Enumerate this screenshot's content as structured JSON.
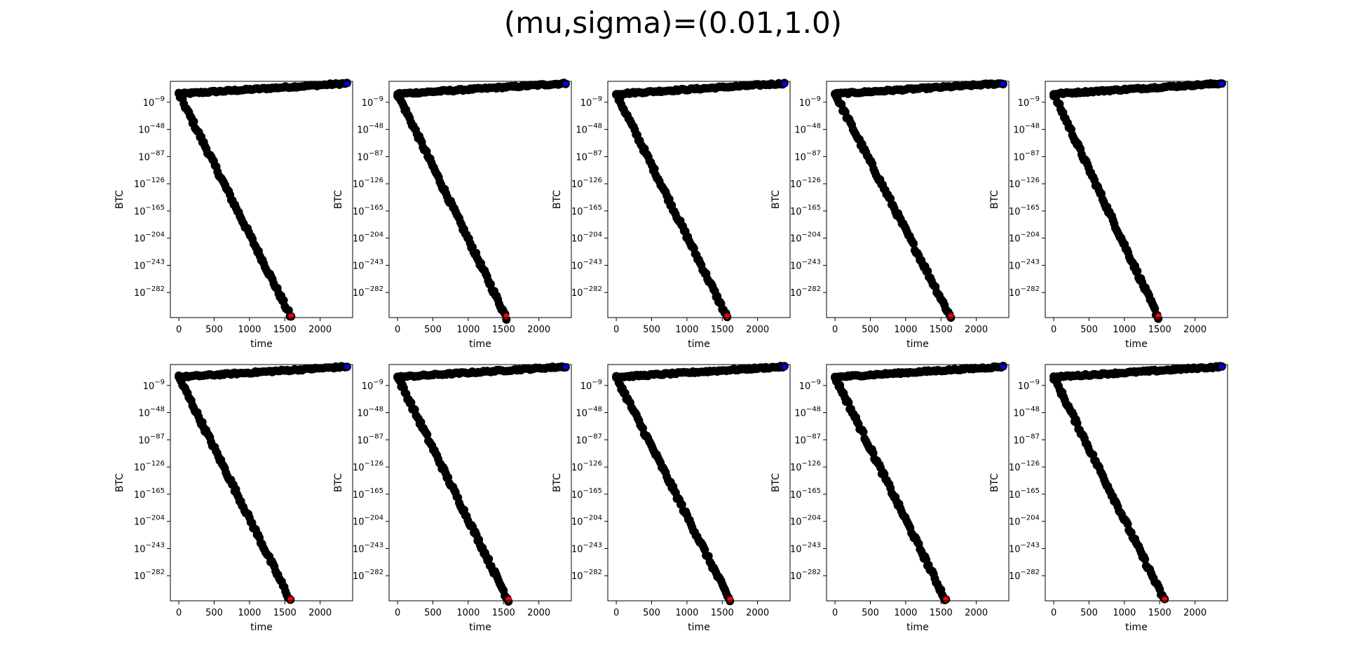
{
  "figure": {
    "title": "(mu,sigma)=(0.01,1.0)"
  },
  "chart_data": [
    {
      "type": "scatter",
      "xlabel": "time",
      "ylabel": "BTC",
      "xlim": [
        -120,
        2460
      ],
      "ylog": true,
      "ylim_exp": [
        21,
        -318
      ],
      "x_ticks": [
        0,
        500,
        1000,
        1500,
        2000
      ],
      "y_tick_exps": [
        -9,
        -48,
        -87,
        -126,
        -165,
        -204,
        -243,
        -282
      ],
      "x_end": 2380,
      "upper_start_exp": 3,
      "upper_end_exp": 18,
      "lower_end_x": 1590,
      "series": [
        {
          "name": "",
          "color": "#0000ff"
        },
        {
          "name": "",
          "color": "#ff0000"
        }
      ]
    },
    {
      "type": "scatter",
      "xlabel": "time",
      "ylabel": "BTC",
      "xlim": [
        -120,
        2460
      ],
      "ylog": true,
      "ylim_exp": [
        21,
        -318
      ],
      "x_ticks": [
        0,
        500,
        1000,
        1500,
        2000
      ],
      "y_tick_exps": [
        -9,
        -48,
        -87,
        -126,
        -165,
        -204,
        -243,
        -282
      ],
      "x_end": 2380,
      "upper_start_exp": 3,
      "upper_end_exp": 18,
      "lower_end_x": 1540,
      "series": [
        {
          "name": "",
          "color": "#0000ff"
        },
        {
          "name": "",
          "color": "#ff0000"
        }
      ]
    },
    {
      "type": "scatter",
      "xlabel": "time",
      "ylabel": "BTC",
      "xlim": [
        -120,
        2460
      ],
      "ylog": true,
      "ylim_exp": [
        21,
        -318
      ],
      "x_ticks": [
        0,
        500,
        1000,
        1500,
        2000
      ],
      "y_tick_exps": [
        -9,
        -48,
        -87,
        -126,
        -165,
        -204,
        -243,
        -282
      ],
      "x_end": 2380,
      "upper_start_exp": 3,
      "upper_end_exp": 18,
      "lower_end_x": 1570,
      "series": [
        {
          "name": "",
          "color": "#0000ff"
        },
        {
          "name": "",
          "color": "#ff0000"
        }
      ]
    },
    {
      "type": "scatter",
      "xlabel": "time",
      "ylabel": "BTC",
      "xlim": [
        -120,
        2460
      ],
      "ylog": true,
      "ylim_exp": [
        21,
        -318
      ],
      "x_ticks": [
        0,
        500,
        1000,
        1500,
        2000
      ],
      "y_tick_exps": [
        -9,
        -48,
        -87,
        -126,
        -165,
        -204,
        -243,
        -282
      ],
      "x_end": 2380,
      "upper_start_exp": 3,
      "upper_end_exp": 18,
      "lower_end_x": 1640,
      "series": [
        {
          "name": "",
          "color": "#0000ff"
        },
        {
          "name": "",
          "color": "#ff0000"
        }
      ]
    },
    {
      "type": "scatter",
      "xlabel": "time",
      "ylabel": "BTC",
      "xlim": [
        -120,
        2460
      ],
      "ylog": true,
      "ylim_exp": [
        21,
        -318
      ],
      "x_ticks": [
        0,
        500,
        1000,
        1500,
        2000
      ],
      "y_tick_exps": [
        -9,
        -48,
        -87,
        -126,
        -165,
        -204,
        -243,
        -282
      ],
      "x_end": 2380,
      "upper_start_exp": 3,
      "upper_end_exp": 18,
      "lower_end_x": 1480,
      "series": [
        {
          "name": "",
          "color": "#0000ff"
        },
        {
          "name": "",
          "color": "#ff0000"
        }
      ]
    },
    {
      "type": "scatter",
      "xlabel": "time",
      "ylabel": "BTC",
      "xlim": [
        -120,
        2460
      ],
      "ylog": true,
      "ylim_exp": [
        21,
        -318
      ],
      "x_ticks": [
        0,
        500,
        1000,
        1500,
        2000
      ],
      "y_tick_exps": [
        -9,
        -48,
        -87,
        -126,
        -165,
        -204,
        -243,
        -282
      ],
      "x_end": 2380,
      "upper_start_exp": 3,
      "upper_end_exp": 18,
      "lower_end_x": 1580,
      "series": [
        {
          "name": "",
          "color": "#0000ff"
        },
        {
          "name": "",
          "color": "#ff0000"
        }
      ]
    },
    {
      "type": "scatter",
      "xlabel": "time",
      "ylabel": "BTC",
      "xlim": [
        -120,
        2460
      ],
      "ylog": true,
      "ylim_exp": [
        21,
        -318
      ],
      "x_ticks": [
        0,
        500,
        1000,
        1500,
        2000
      ],
      "y_tick_exps": [
        -9,
        -48,
        -87,
        -126,
        -165,
        -204,
        -243,
        -282
      ],
      "x_end": 2380,
      "upper_start_exp": 3,
      "upper_end_exp": 18,
      "lower_end_x": 1570,
      "series": [
        {
          "name": "",
          "color": "#0000ff"
        },
        {
          "name": "",
          "color": "#ff0000"
        }
      ]
    },
    {
      "type": "scatter",
      "xlabel": "time",
      "ylabel": "BTC",
      "xlim": [
        -120,
        2460
      ],
      "ylog": true,
      "ylim_exp": [
        21,
        -318
      ],
      "x_ticks": [
        0,
        500,
        1000,
        1500,
        2000
      ],
      "y_tick_exps": [
        -9,
        -48,
        -87,
        -126,
        -165,
        -204,
        -243,
        -282
      ],
      "x_end": 2380,
      "upper_start_exp": 3,
      "upper_end_exp": 18,
      "lower_end_x": 1610,
      "series": [
        {
          "name": "",
          "color": "#0000ff"
        },
        {
          "name": "",
          "color": "#ff0000"
        }
      ]
    },
    {
      "type": "scatter",
      "xlabel": "time",
      "ylabel": "BTC",
      "xlim": [
        -120,
        2460
      ],
      "ylog": true,
      "ylim_exp": [
        21,
        -318
      ],
      "x_ticks": [
        0,
        500,
        1000,
        1500,
        2000
      ],
      "y_tick_exps": [
        -9,
        -48,
        -87,
        -126,
        -165,
        -204,
        -243,
        -282
      ],
      "x_end": 2380,
      "upper_start_exp": 3,
      "upper_end_exp": 18,
      "lower_end_x": 1570,
      "series": [
        {
          "name": "",
          "color": "#0000ff"
        },
        {
          "name": "",
          "color": "#ff0000"
        }
      ]
    },
    {
      "type": "scatter",
      "xlabel": "time",
      "ylabel": "BTC",
      "xlim": [
        -120,
        2460
      ],
      "ylog": true,
      "ylim_exp": [
        21,
        -318
      ],
      "x_ticks": [
        0,
        500,
        1000,
        1500,
        2000
      ],
      "y_tick_exps": [
        -9,
        -48,
        -87,
        -126,
        -165,
        -204,
        -243,
        -282
      ],
      "x_end": 2380,
      "upper_start_exp": 3,
      "upper_end_exp": 18,
      "lower_end_x": 1570,
      "series": [
        {
          "name": "",
          "color": "#0000ff"
        },
        {
          "name": "",
          "color": "#ff0000"
        }
      ]
    }
  ]
}
